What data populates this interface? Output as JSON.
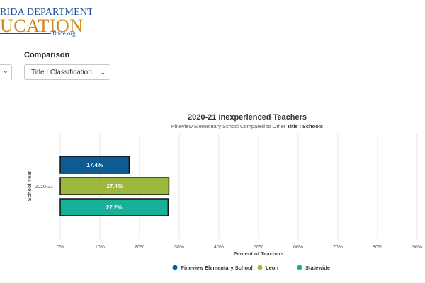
{
  "header": {
    "logo_top": "RIDA DEPARTMENT OF",
    "logo_main": "UCATION",
    "logo_sub": "fldoe.org"
  },
  "filters": {
    "comparison_label": "Comparison",
    "comparison_value": "Title I Classification"
  },
  "chart_data": {
    "type": "bar",
    "orientation": "horizontal",
    "title": "2020-21 Inexperienced Teachers",
    "subtitle_prefix": "Pineview Elementary School Compared to Other ",
    "subtitle_bold": "Title I Schools",
    "xlabel": "Percent of Teachers",
    "ylabel": "School Year",
    "categories": [
      "2020-21"
    ],
    "xlim": [
      0,
      90
    ],
    "xticks": [
      "0%",
      "10%",
      "20%",
      "30%",
      "40%",
      "50%",
      "60%",
      "70%",
      "80%",
      "90%"
    ],
    "grid": true,
    "legend_position": "bottom",
    "series": [
      {
        "name": "Pineview Elementary School",
        "values": [
          17.4
        ],
        "label": "17.4%",
        "color": "#0d5b92"
      },
      {
        "name": "Leon",
        "values": [
          27.4
        ],
        "label": "27.4%",
        "color": "#9cb83d"
      },
      {
        "name": "Statewide",
        "values": [
          27.2
        ],
        "label": "27.2%",
        "color": "#17b199"
      }
    ]
  }
}
